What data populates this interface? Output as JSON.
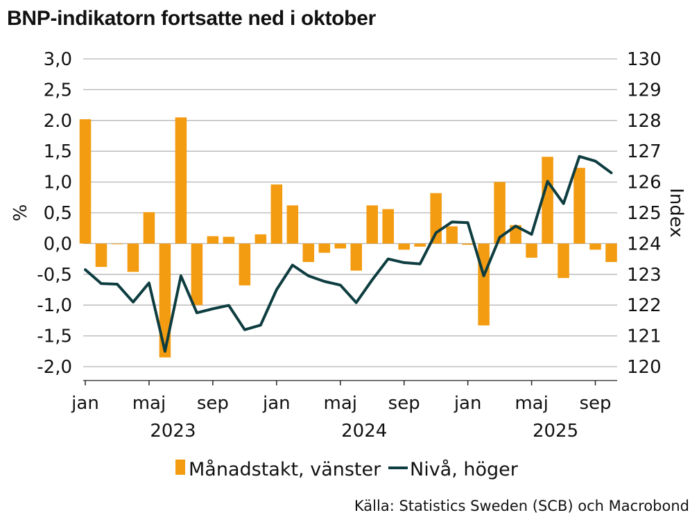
{
  "title": "BNP-indikatorn fortsatte ned i oktober",
  "source": "Källa: Statistics Sweden (SCB) och Macrobond",
  "colors": {
    "bar": "#F39C12",
    "line": "#0E3D40",
    "grid": "#b4b4b4",
    "axis": "#222222"
  },
  "chart_data": {
    "type": "bar+line",
    "left_axis": {
      "label": "%",
      "ylim": [
        -2.0,
        3.0
      ],
      "ticks": [
        3.0,
        2.5,
        2.0,
        1.5,
        1.0,
        0.5,
        0.0,
        -0.5,
        -1.0,
        -1.5,
        -2.0
      ],
      "tick_labels": [
        "3,0",
        "2,5",
        "2.0",
        "1,5",
        "1,0",
        "0,5",
        "0,0",
        "-0,5",
        "-1,0",
        "-1,5",
        "-2,0"
      ]
    },
    "right_axis": {
      "label": "Index",
      "ylim": [
        120,
        130
      ],
      "ticks": [
        130,
        129,
        128,
        127,
        126,
        125,
        124,
        123,
        122,
        121,
        120
      ],
      "tick_labels": [
        "130",
        "129",
        "128",
        "127",
        "126",
        "125",
        "124",
        "123",
        "122",
        "121",
        "120"
      ]
    },
    "x_tick_labels": [
      {
        "index": 0,
        "label": "jan"
      },
      {
        "index": 4,
        "label": "maj"
      },
      {
        "index": 8,
        "label": "sep"
      },
      {
        "index": 12,
        "label": "jan"
      },
      {
        "index": 16,
        "label": "maj"
      },
      {
        "index": 20,
        "label": "sep"
      },
      {
        "index": 24,
        "label": "jan"
      },
      {
        "index": 28,
        "label": "maj"
      },
      {
        "index": 32,
        "label": "sep"
      }
    ],
    "year_labels": [
      {
        "index": 6,
        "label": "2023"
      },
      {
        "index": 18,
        "label": "2024"
      },
      {
        "index": 30,
        "label": "2025"
      }
    ],
    "categories": [
      "2023-01",
      "2023-02",
      "2023-03",
      "2023-04",
      "2023-05",
      "2023-06",
      "2023-07",
      "2023-08",
      "2023-09",
      "2023-10",
      "2023-11",
      "2023-12",
      "2024-01",
      "2024-02",
      "2024-03",
      "2024-04",
      "2024-05",
      "2024-06",
      "2024-07",
      "2024-08",
      "2024-09",
      "2024-10",
      "2024-11",
      "2024-12",
      "2025-01",
      "2025-02",
      "2025-03",
      "2025-04",
      "2025-05",
      "2025-06",
      "2025-07",
      "2025-08",
      "2025-09",
      "2025-10"
    ],
    "series": [
      {
        "name": "Månadstakt, vänster",
        "type": "bar",
        "axis": "left",
        "values": [
          2.02,
          -0.38,
          0.0,
          -0.46,
          0.51,
          -1.85,
          2.05,
          -1.0,
          0.12,
          0.11,
          -0.68,
          0.15,
          0.96,
          0.62,
          -0.3,
          -0.15,
          -0.08,
          -0.44,
          0.62,
          0.56,
          -0.1,
          -0.05,
          0.82,
          0.28,
          -0.02,
          -1.33,
          1.0,
          0.3,
          -0.23,
          1.41,
          -0.56,
          1.23,
          -0.1,
          -0.3
        ]
      },
      {
        "name": "Nivå, höger",
        "type": "line",
        "axis": "right",
        "values": [
          123.15,
          122.7,
          122.68,
          122.1,
          122.72,
          120.5,
          122.95,
          121.75,
          121.88,
          121.99,
          121.2,
          121.35,
          122.5,
          123.3,
          122.95,
          122.77,
          122.65,
          122.08,
          122.82,
          123.5,
          123.38,
          123.34,
          124.35,
          124.7,
          124.68,
          122.95,
          124.2,
          124.57,
          124.3,
          126.02,
          125.3,
          126.83,
          126.68,
          126.3
        ]
      }
    ]
  }
}
